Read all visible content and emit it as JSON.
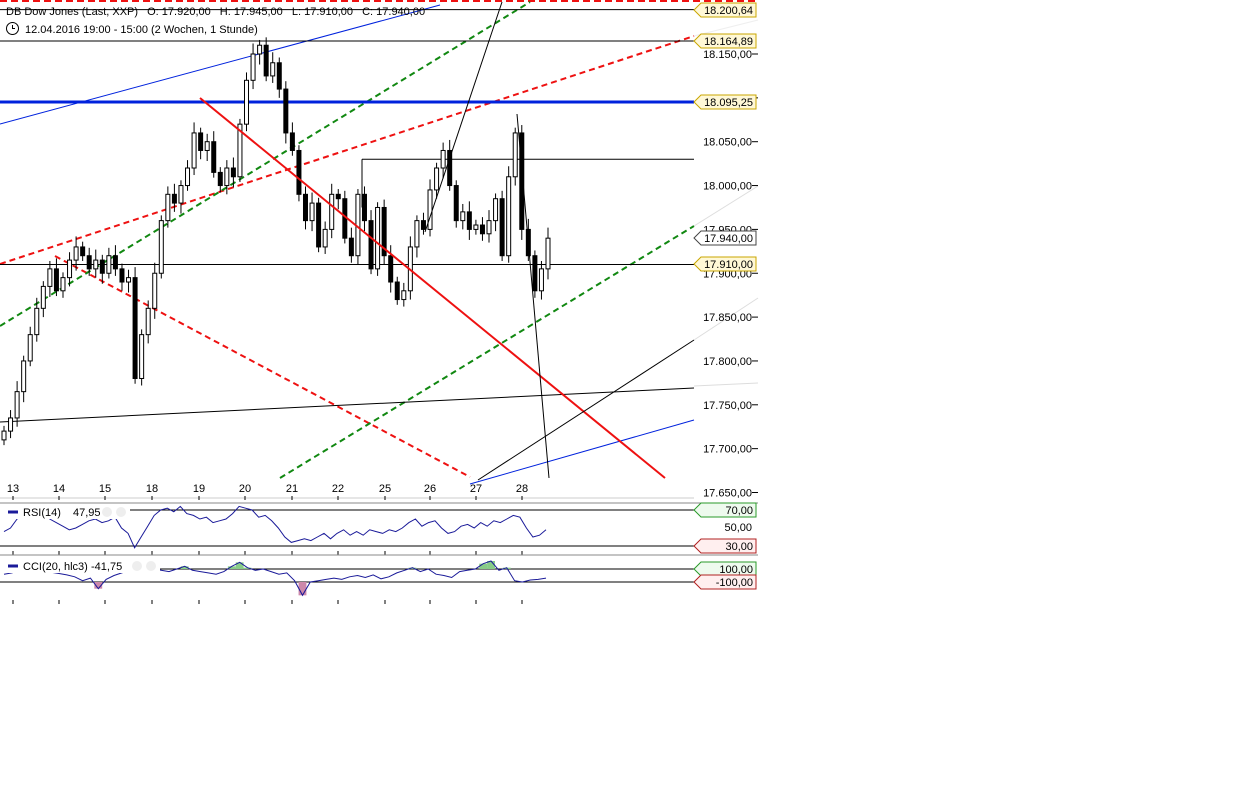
{
  "header": {
    "instrument": "DB Dow Jones (Last, XXP)",
    "open": "O: 17.920,00",
    "high": "H: 17.945,00",
    "low": "L: 17.910,00",
    "close": "C: 17.940,00",
    "period": "12.04.2016 19:00 - 15:00 (2 Wochen, 1 Stunde)",
    "clock_icon": "clock-icon"
  },
  "colors": {
    "blue_line": "#0022dd",
    "red_line": "#ee1111",
    "green_dash": "#118811",
    "indicator": "#1a1a99",
    "cci_pos_fill": "#88cc88",
    "cci_neg_fill": "#cc88aa"
  },
  "chart_data": {
    "type": "candlestick",
    "title": "DB Dow Jones (Last, XXP)",
    "x_tick_labels": [
      "13",
      "14",
      "15",
      "18",
      "19",
      "20",
      "21",
      "22",
      "25",
      "26",
      "27",
      "28"
    ],
    "y_tick_labels": [
      "18.150,00",
      "18.100,00",
      "18.050,00",
      "18.000,00",
      "17.950,00",
      "17.900,00",
      "17.850,00",
      "17.800,00",
      "17.750,00",
      "17.700,00",
      "17.650,00"
    ],
    "y_ticks": [
      18150,
      18100,
      18050,
      18000,
      17950,
      17900,
      17850,
      17800,
      17750,
      17700,
      17650
    ],
    "ylim": [
      17640,
      18215
    ],
    "price_markers": [
      {
        "value": 18200.64,
        "label": "18.200,64",
        "style": "yellow"
      },
      {
        "value": 18164.89,
        "label": "18.164,89",
        "style": "yellow"
      },
      {
        "value": 18095.25,
        "label": "18.095,25",
        "style": "yellow"
      },
      {
        "value": 17940.0,
        "label": "17.940,00",
        "style": "white"
      },
      {
        "value": 17910.0,
        "label": "17.910,00",
        "style": "yellow"
      }
    ],
    "horizontal_lines": [
      {
        "value": 18200.64,
        "color": "black"
      },
      {
        "value": 18164.89,
        "color": "black"
      },
      {
        "value": 18095.25,
        "color": "blue",
        "width": "thick"
      },
      {
        "value": 17910.0,
        "color": "black"
      }
    ],
    "close_series": [
      17720,
      17735,
      17765,
      17800,
      17830,
      17860,
      17885,
      17905,
      17880,
      17895,
      17915,
      17930,
      17920,
      17905,
      17915,
      17900,
      17920,
      17905,
      17890,
      17895,
      17780,
      17830,
      17860,
      17900,
      17960,
      17990,
      17980,
      18000,
      18020,
      18060,
      18040,
      18050,
      18015,
      18000,
      18020,
      18010,
      18070,
      18120,
      18150,
      18160,
      18125,
      18140,
      18110,
      18060,
      18040,
      17990,
      17960,
      17980,
      17930,
      17950,
      17990,
      17985,
      17940,
      17920,
      17990,
      17960,
      17905,
      17975,
      17920,
      17890,
      17870,
      17880,
      17930,
      17960,
      17950,
      17995,
      18020,
      18040,
      18000,
      17960,
      17970,
      17950,
      17955,
      17945,
      17960,
      17985,
      17920,
      18010,
      18060,
      17950,
      17920,
      17880,
      17905,
      17940
    ],
    "rsi": {
      "label": "RSI(14)",
      "value": "47,95",
      "levels": [
        {
          "value": 70,
          "label": "70,00"
        },
        {
          "value": 50,
          "label": "50,00"
        },
        {
          "value": 30,
          "label": "30,00"
        }
      ],
      "series": [
        46,
        50,
        60,
        64,
        66,
        62,
        66,
        60,
        56,
        52,
        48,
        50,
        54,
        58,
        60,
        56,
        58,
        62,
        50,
        44,
        28,
        40,
        52,
        64,
        70,
        72,
        68,
        74,
        66,
        64,
        60,
        62,
        56,
        58,
        60,
        66,
        74,
        72,
        70,
        62,
        64,
        58,
        50,
        40,
        34,
        36,
        38,
        36,
        40,
        44,
        38,
        44,
        48,
        42,
        46,
        42,
        48,
        46,
        44,
        48,
        46,
        50,
        56,
        60,
        52,
        56,
        58,
        50,
        44,
        46,
        52,
        54,
        50,
        56,
        52,
        58,
        56,
        60,
        64,
        62,
        50,
        40,
        42,
        48
      ]
    },
    "cci": {
      "label": "CCI(20, hlc3)",
      "value": "-41,75",
      "levels": [
        {
          "value": 100,
          "label": "100,00"
        },
        {
          "value": -100,
          "label": "-100,00"
        }
      ],
      "series": [
        20,
        40,
        80,
        60,
        90,
        70,
        50,
        30,
        10,
        -20,
        -80,
        -40,
        -120,
        -60,
        0,
        40,
        80,
        140,
        120,
        100,
        80,
        60,
        100,
        120,
        80,
        60,
        40,
        20,
        60,
        120,
        150,
        110,
        80,
        100,
        60,
        20,
        40,
        -80,
        -140,
        -100,
        -80,
        -60,
        -40,
        -60,
        -20,
        0,
        -30,
        10,
        -50,
        -20,
        40,
        80,
        110,
        60,
        100,
        20,
        0,
        -30,
        60,
        80,
        100,
        140,
        160,
        80,
        110,
        -80,
        -100,
        -70,
        -60,
        -40
      ]
    }
  }
}
